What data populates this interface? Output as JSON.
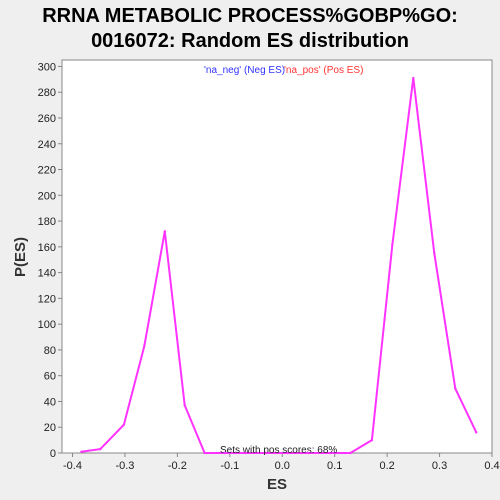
{
  "chart_data": {
    "type": "line",
    "title_line1": "RRNA METABOLIC PROCESS%GOBP%GO:",
    "title_line2": "0016072: Random ES distribution",
    "xlabel": "ES",
    "ylabel": "P(ES)",
    "xlim": [
      -0.42,
      0.4
    ],
    "ylim": [
      0,
      305
    ],
    "xticks": [
      -0.4,
      -0.3,
      -0.2,
      -0.1,
      0.0,
      0.1,
      0.2,
      0.3,
      0.4
    ],
    "xtick_labels": [
      "-0.4",
      "-0.3",
      "-0.2",
      "-0.1",
      "0.0",
      "0.1",
      "0.2",
      "0.3",
      "0.4"
    ],
    "yticks": [
      0,
      20,
      40,
      60,
      80,
      100,
      120,
      140,
      160,
      180,
      200,
      220,
      240,
      260,
      280,
      300
    ],
    "legend_neg": "'na_neg' (Neg ES)",
    "legend_pos": "'na_pos' (Pos ES)",
    "annotation": "Sets with pos scores: 68%",
    "grid": false,
    "series": [
      {
        "color": "#ff33ff",
        "x": [
          -0.383,
          -0.347,
          -0.302,
          -0.263,
          -0.224,
          -0.186,
          -0.148,
          -0.11,
          -0.07,
          -0.03,
          0.01,
          0.05,
          0.09,
          0.13,
          0.171,
          0.21,
          0.25,
          0.29,
          0.33,
          0.37
        ],
        "y": [
          1,
          3,
          22,
          83,
          172,
          37,
          0,
          0,
          0,
          0,
          0,
          0,
          0,
          0,
          10,
          162,
          291,
          155,
          50,
          16
        ]
      }
    ]
  }
}
